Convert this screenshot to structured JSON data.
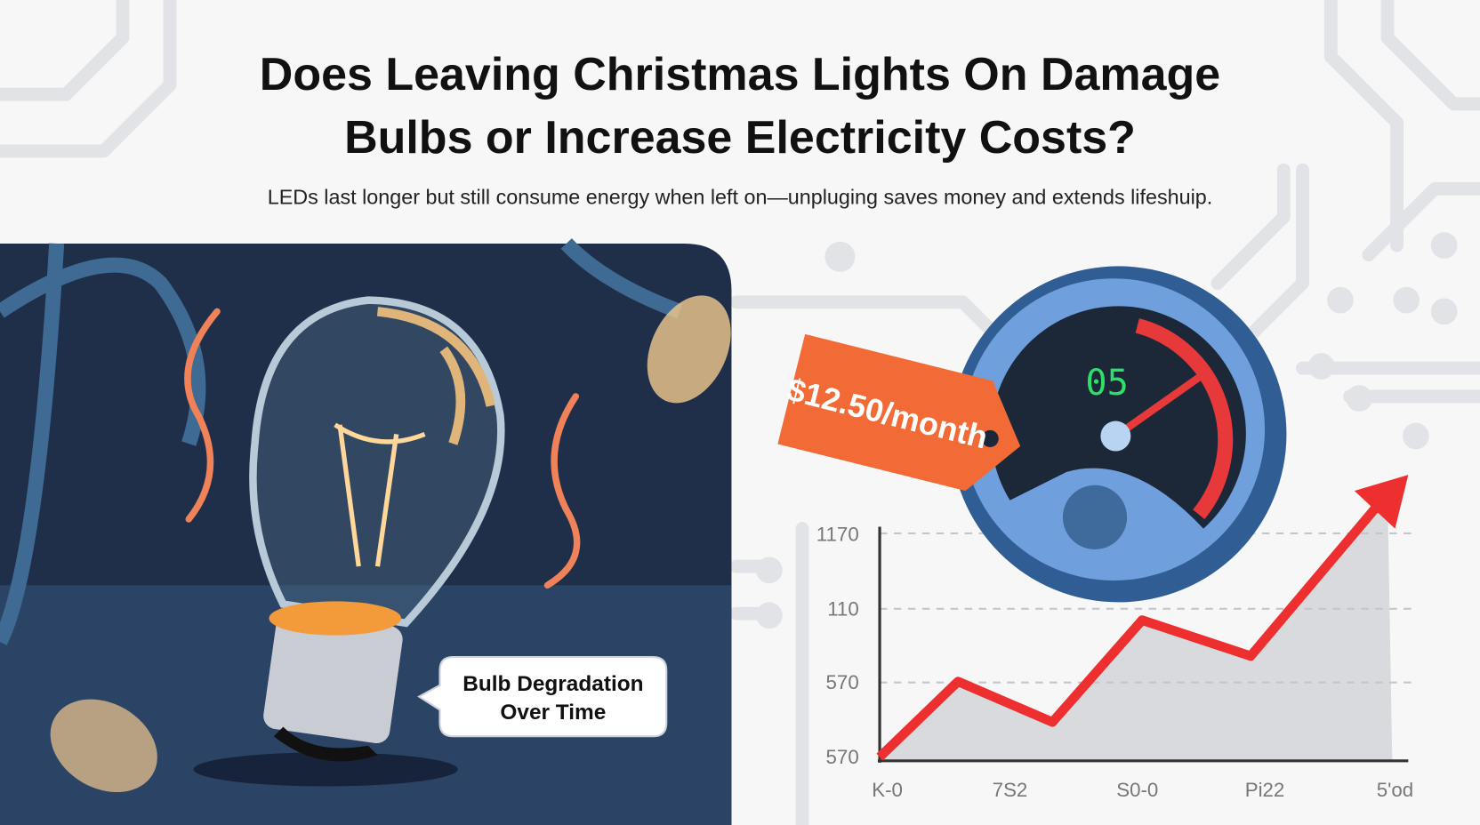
{
  "header": {
    "title_lines": [
      "Does Leaving Christmas Lights On Damage",
      "Bulbs or Increase Electricity Costs?"
    ],
    "subtitle": "LEDs last longer but still consume energy when left on—unpluging saves money and extends lifeshuip."
  },
  "left_panel": {
    "callout_lines": [
      "Bulb Degradation",
      "Over Time"
    ]
  },
  "right_panel": {
    "price_tag": "$12.50/month",
    "gauge_readout": "05",
    "chart": {
      "y_labels": [
        "1170",
        "110",
        "570",
        "570"
      ],
      "x_labels": [
        "K-0",
        "7S2",
        "S0-0",
        "Pi22",
        "5'od"
      ]
    }
  }
}
